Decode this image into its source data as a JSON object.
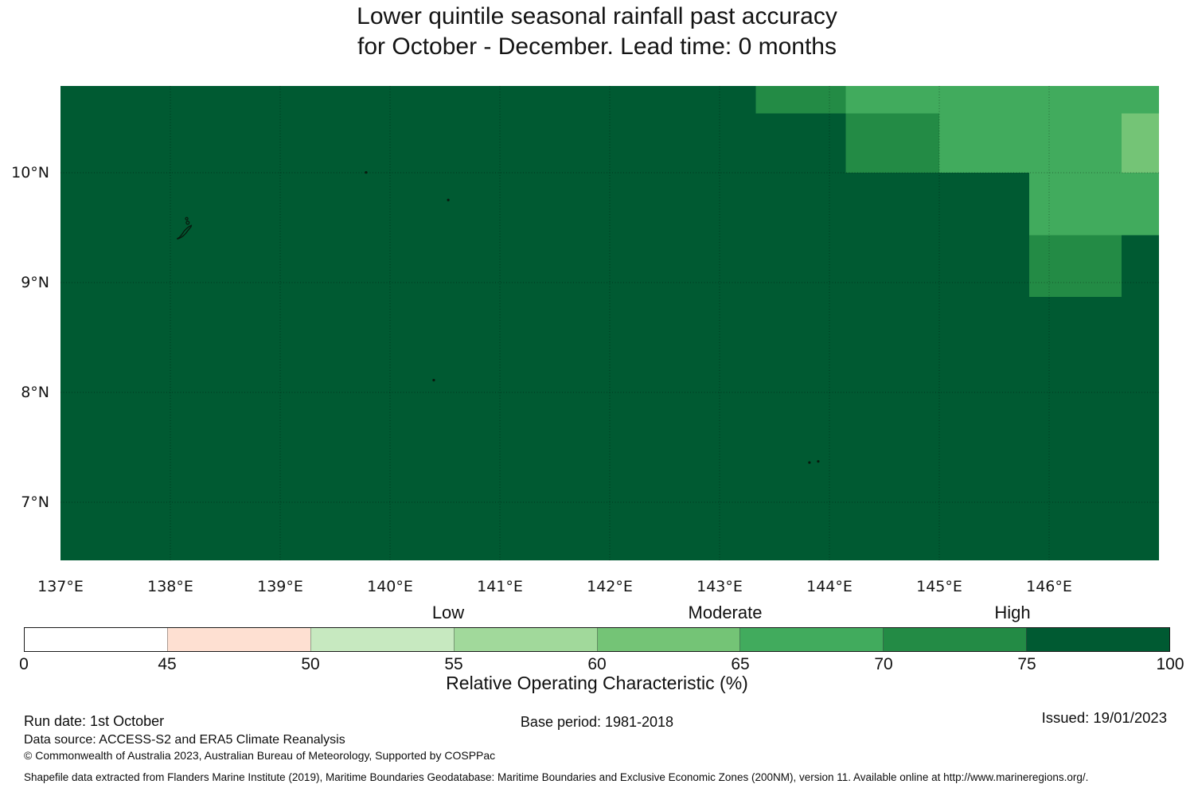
{
  "title": {
    "line1": "Lower quintile seasonal rainfall past accuracy",
    "line2": "for October - December. Lead time: 0 months"
  },
  "chart_data": {
    "type": "heatmap",
    "title": "Lower quintile seasonal rainfall past accuracy for October - December. Lead time: 0 months",
    "map": {
      "lon_range": [
        137.0,
        147.0
      ],
      "lat_range": [
        6.47,
        10.79
      ],
      "grid_lons": [
        138,
        139,
        140,
        141,
        142,
        143,
        144,
        145,
        146
      ],
      "grid_lats": [
        7,
        8,
        9,
        10
      ],
      "x_tick_labels": [
        {
          "lon": 137,
          "label": "137°E"
        },
        {
          "lon": 138,
          "label": "138°E"
        },
        {
          "lon": 139,
          "label": "139°E"
        },
        {
          "lon": 140,
          "label": "140°E"
        },
        {
          "lon": 141,
          "label": "141°E"
        },
        {
          "lon": 142,
          "label": "142°E"
        },
        {
          "lon": 143,
          "label": "143°E"
        },
        {
          "lon": 144,
          "label": "144°E"
        },
        {
          "lon": 145,
          "label": "145°E"
        },
        {
          "lon": 146,
          "label": "146°E"
        }
      ],
      "y_tick_labels": [
        {
          "lat": 10,
          "label": "10°N"
        },
        {
          "lat": 9,
          "label": "9°N"
        },
        {
          "lat": 8,
          "label": "8°N"
        },
        {
          "lat": 7,
          "label": "7°N"
        }
      ],
      "base": {
        "roc": "75-100",
        "color": "#005a32"
      },
      "patches": [
        {
          "lon": [
            143.33,
            144.15
          ],
          "lat": [
            10.54,
            10.79
          ],
          "roc": "70-75",
          "color": "#238b45"
        },
        {
          "lon": [
            144.15,
            145.0
          ],
          "lat": [
            10.54,
            10.79
          ],
          "roc": "65-70",
          "color": "#41ab5d"
        },
        {
          "lon": [
            144.15,
            145.0
          ],
          "lat": [
            10.0,
            10.54
          ],
          "roc": "70-75",
          "color": "#238b45"
        },
        {
          "lon": [
            145.0,
            146.66
          ],
          "lat": [
            10.0,
            10.79
          ],
          "roc": "65-70",
          "color": "#41ab5d"
        },
        {
          "lon": [
            146.66,
            147.0
          ],
          "lat": [
            10.54,
            10.79
          ],
          "roc": "65-70",
          "color": "#41ab5d"
        },
        {
          "lon": [
            146.66,
            147.0
          ],
          "lat": [
            10.0,
            10.54
          ],
          "roc": "60-65",
          "color": "#74c476"
        },
        {
          "lon": [
            145.82,
            147.0
          ],
          "lat": [
            9.43,
            10.0
          ],
          "roc": "65-70",
          "color": "#41ab5d"
        },
        {
          "lon": [
            145.82,
            146.66
          ],
          "lat": [
            8.87,
            9.43
          ],
          "roc": "70-75",
          "color": "#238b45"
        }
      ],
      "islands": {
        "outline_points": [
          [
            138.06,
            9.398
          ],
          [
            138.082,
            9.412
          ],
          [
            138.1,
            9.432
          ],
          [
            138.114,
            9.452
          ],
          [
            138.128,
            9.472
          ],
          [
            138.146,
            9.49
          ],
          [
            138.163,
            9.505
          ],
          [
            138.18,
            9.515
          ],
          [
            138.192,
            9.521
          ],
          [
            138.187,
            9.506
          ],
          [
            138.172,
            9.489
          ],
          [
            138.157,
            9.47
          ],
          [
            138.141,
            9.449
          ],
          [
            138.121,
            9.428
          ],
          [
            138.096,
            9.41
          ],
          [
            138.07,
            9.398
          ],
          [
            138.06,
            9.398
          ]
        ],
        "rings": [
          {
            "lon": 138.158,
            "lat": 9.545,
            "r": 0.014
          },
          {
            "lon": 138.149,
            "lat": 9.582,
            "r": 0.011
          }
        ],
        "dots": [
          {
            "lon": 139.782,
            "lat": 10.003
          },
          {
            "lon": 140.53,
            "lat": 9.752
          },
          {
            "lon": 140.398,
            "lat": 8.112
          },
          {
            "lon": 143.818,
            "lat": 7.362
          },
          {
            "lon": 143.898,
            "lat": 7.372
          }
        ]
      }
    },
    "colorbar": {
      "zone_labels": [
        "Low",
        "Moderate",
        "High"
      ],
      "segments": [
        {
          "range": [
            0,
            45
          ],
          "color": "#ffffff"
        },
        {
          "range": [
            45,
            50
          ],
          "color": "#fee0d2"
        },
        {
          "range": [
            50,
            55
          ],
          "color": "#c7e9c0"
        },
        {
          "range": [
            55,
            60
          ],
          "color": "#a1d99b"
        },
        {
          "range": [
            60,
            65
          ],
          "color": "#74c476"
        },
        {
          "range": [
            65,
            70
          ],
          "color": "#41ab5d"
        },
        {
          "range": [
            70,
            75
          ],
          "color": "#238b45"
        },
        {
          "range": [
            75,
            100
          ],
          "color": "#005a32"
        }
      ],
      "tick_labels": [
        "0",
        "45",
        "50",
        "55",
        "60",
        "65",
        "70",
        "75",
        "100"
      ],
      "axis_label": "Relative Operating Characteristic (%)"
    }
  },
  "footer": {
    "run_date": "Run date: 1st October",
    "base_period": "Base period: 1981-2018",
    "issued": "Issued: 19/01/2023",
    "data_source": "Data source: ACCESS-S2 and ERA5 Climate Reanalysis",
    "copyright": "© Commonwealth of Australia 2023, Australian Bureau of Meteorology, Supported by COSPPac",
    "shapefile_note": "Shapefile data extracted from Flanders Marine Institute (2019), Maritime Boundaries Geodatabase: Maritime Boundaries and Exclusive Economic Zones (200NM), version 11. Available online at http://www.marineregions.org/."
  }
}
